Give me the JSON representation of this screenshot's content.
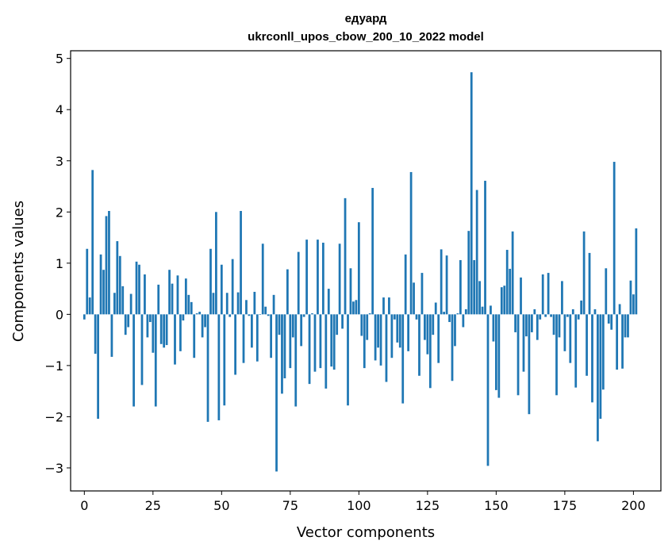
{
  "chart_data": {
    "type": "bar",
    "title_line1": "едуард",
    "title_line2": "ukrconll_upos_cbow_200_10_2022 model",
    "xlabel": "Vector components",
    "ylabel": "Components values",
    "xlim": [
      -5,
      210
    ],
    "ylim": [
      -3.45,
      5.15
    ],
    "xticks": [
      0,
      25,
      50,
      75,
      100,
      125,
      150,
      175,
      200
    ],
    "yticks": [
      -3,
      -2,
      -1,
      0,
      1,
      2,
      3,
      4,
      5
    ],
    "grid": false,
    "bar_color": "#1f77b4",
    "values": [
      -0.1,
      1.28,
      0.33,
      2.82,
      -0.77,
      -2.04,
      1.17,
      0.87,
      1.92,
      2.02,
      -0.83,
      0.42,
      1.43,
      1.14,
      0.55,
      -0.4,
      -0.25,
      0.4,
      -1.8,
      1.03,
      0.97,
      -1.38,
      0.78,
      -0.45,
      -0.15,
      -0.75,
      -1.8,
      0.58,
      -0.58,
      -0.65,
      -0.6,
      0.87,
      0.6,
      -0.98,
      0.76,
      -0.72,
      -0.12,
      0.7,
      0.38,
      0.24,
      -0.85,
      0.02,
      0.05,
      -0.45,
      -0.25,
      -2.1,
      1.28,
      0.42,
      2.0,
      -2.07,
      0.97,
      -1.78,
      0.42,
      -0.05,
      1.08,
      -1.18,
      0.43,
      2.02,
      -0.95,
      0.28,
      -0.03,
      -0.65,
      0.44,
      -0.92,
      0.0,
      1.38,
      0.15,
      -0.03,
      -0.85,
      0.38,
      -3.07,
      -0.4,
      -1.55,
      -1.25,
      0.88,
      -1.05,
      -0.45,
      -1.8,
      1.22,
      -0.62,
      -0.05,
      1.46,
      -1.36,
      0.02,
      -1.12,
      1.46,
      -1.05,
      1.4,
      -1.45,
      0.5,
      -1.02,
      -1.08,
      -0.4,
      1.38,
      -0.28,
      2.27,
      -1.78,
      0.9,
      0.25,
      0.28,
      1.8,
      -0.42,
      -1.05,
      -0.5,
      0.02,
      2.47,
      -0.9,
      -0.65,
      -1.0,
      0.33,
      -1.32,
      0.33,
      -0.85,
      -0.1,
      -0.55,
      -0.65,
      -1.74,
      1.17,
      -0.72,
      2.78,
      0.62,
      -0.1,
      -1.2,
      0.81,
      -0.5,
      -0.78,
      -1.44,
      -0.4,
      0.23,
      -0.95,
      1.27,
      0.05,
      1.15,
      -0.15,
      -1.3,
      -0.62,
      0.02,
      1.06,
      -0.25,
      0.1,
      1.63,
      4.73,
      1.06,
      2.43,
      0.65,
      0.15,
      2.61,
      -2.96,
      0.17,
      -0.53,
      -1.48,
      -1.63,
      0.53,
      0.56,
      1.26,
      0.89,
      1.62,
      -0.35,
      -1.58,
      0.72,
      -1.12,
      -0.43,
      -1.95,
      -0.35,
      0.1,
      -0.5,
      -0.1,
      0.78,
      -0.05,
      0.81,
      -0.05,
      -0.4,
      -1.58,
      -0.45,
      0.65,
      -0.72,
      -0.05,
      -0.95,
      0.1,
      -1.43,
      -0.1,
      0.27,
      1.62,
      -1.2,
      1.2,
      -1.72,
      0.1,
      -2.48,
      -2.04,
      -1.47,
      0.9,
      -0.18,
      -0.3,
      2.98,
      -1.08,
      0.2,
      -1.06,
      -0.45,
      -0.45,
      0.66,
      0.39,
      1.68
    ]
  }
}
